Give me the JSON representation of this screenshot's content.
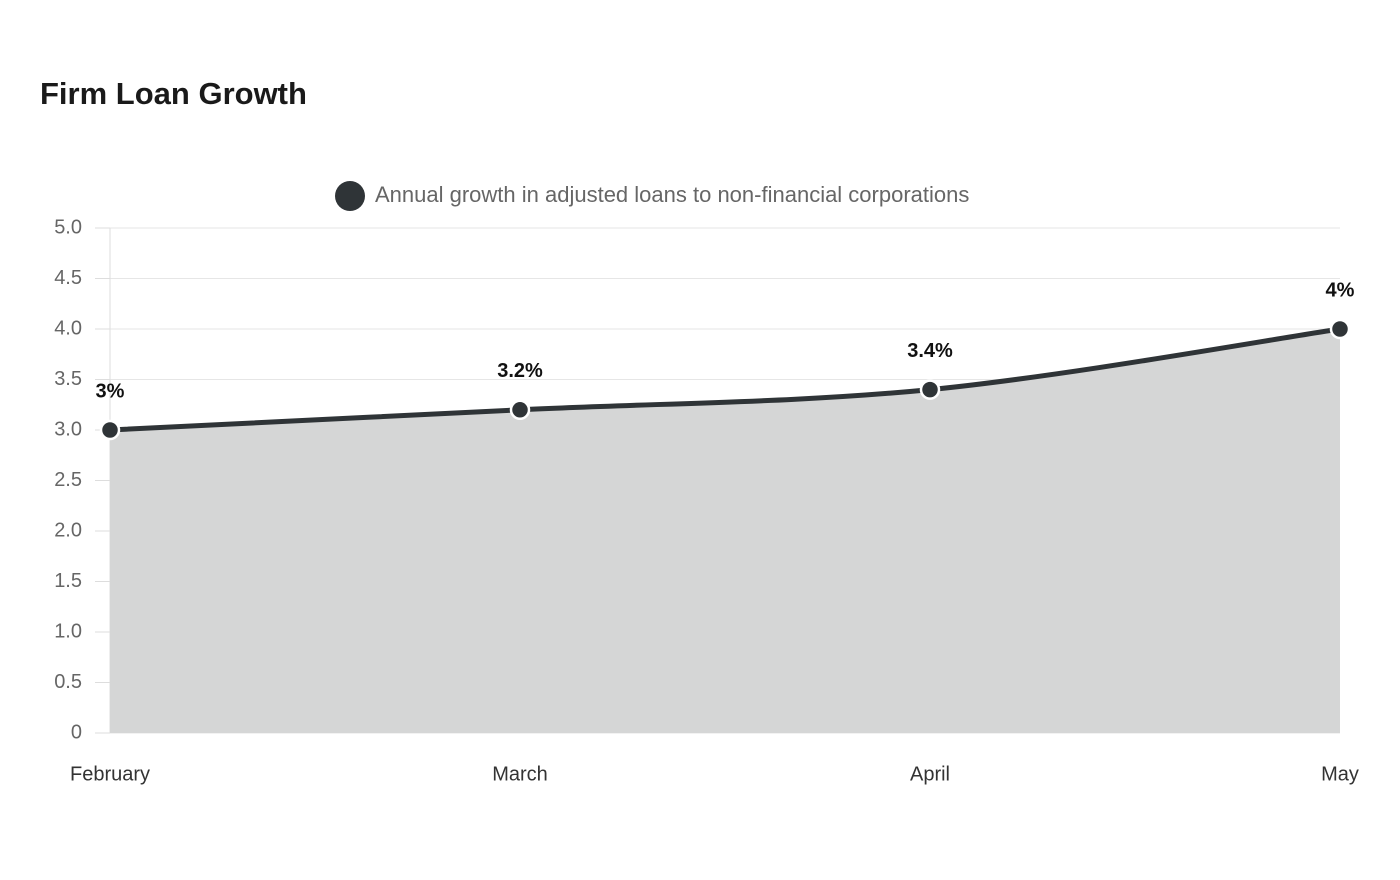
{
  "chart_data": {
    "type": "area",
    "title": "Firm Loan Growth",
    "categories": [
      "February",
      "March",
      "April",
      "May"
    ],
    "series": [
      {
        "name": "Annual growth in adjusted loans to non-financial corporations",
        "color": "#2f3437",
        "fill": "#d5d6d6",
        "values": [
          3,
          3.2,
          3.4,
          4
        ],
        "value_labels": [
          "3%",
          "3.2%",
          "3.4%",
          "4%"
        ]
      }
    ],
    "ylim": [
      0,
      5
    ],
    "yticks": [
      0,
      0.5,
      {
        "value": 1,
        "label": "1.0"
      },
      1.5,
      {
        "value": 2,
        "label": "2.0"
      },
      2.5,
      {
        "value": 3,
        "label": "3.0"
      },
      3.5,
      {
        "value": 4,
        "label": "4.0"
      },
      4.5,
      {
        "value": 5,
        "label": "5.0"
      }
    ],
    "grid": true,
    "legend": "top"
  }
}
